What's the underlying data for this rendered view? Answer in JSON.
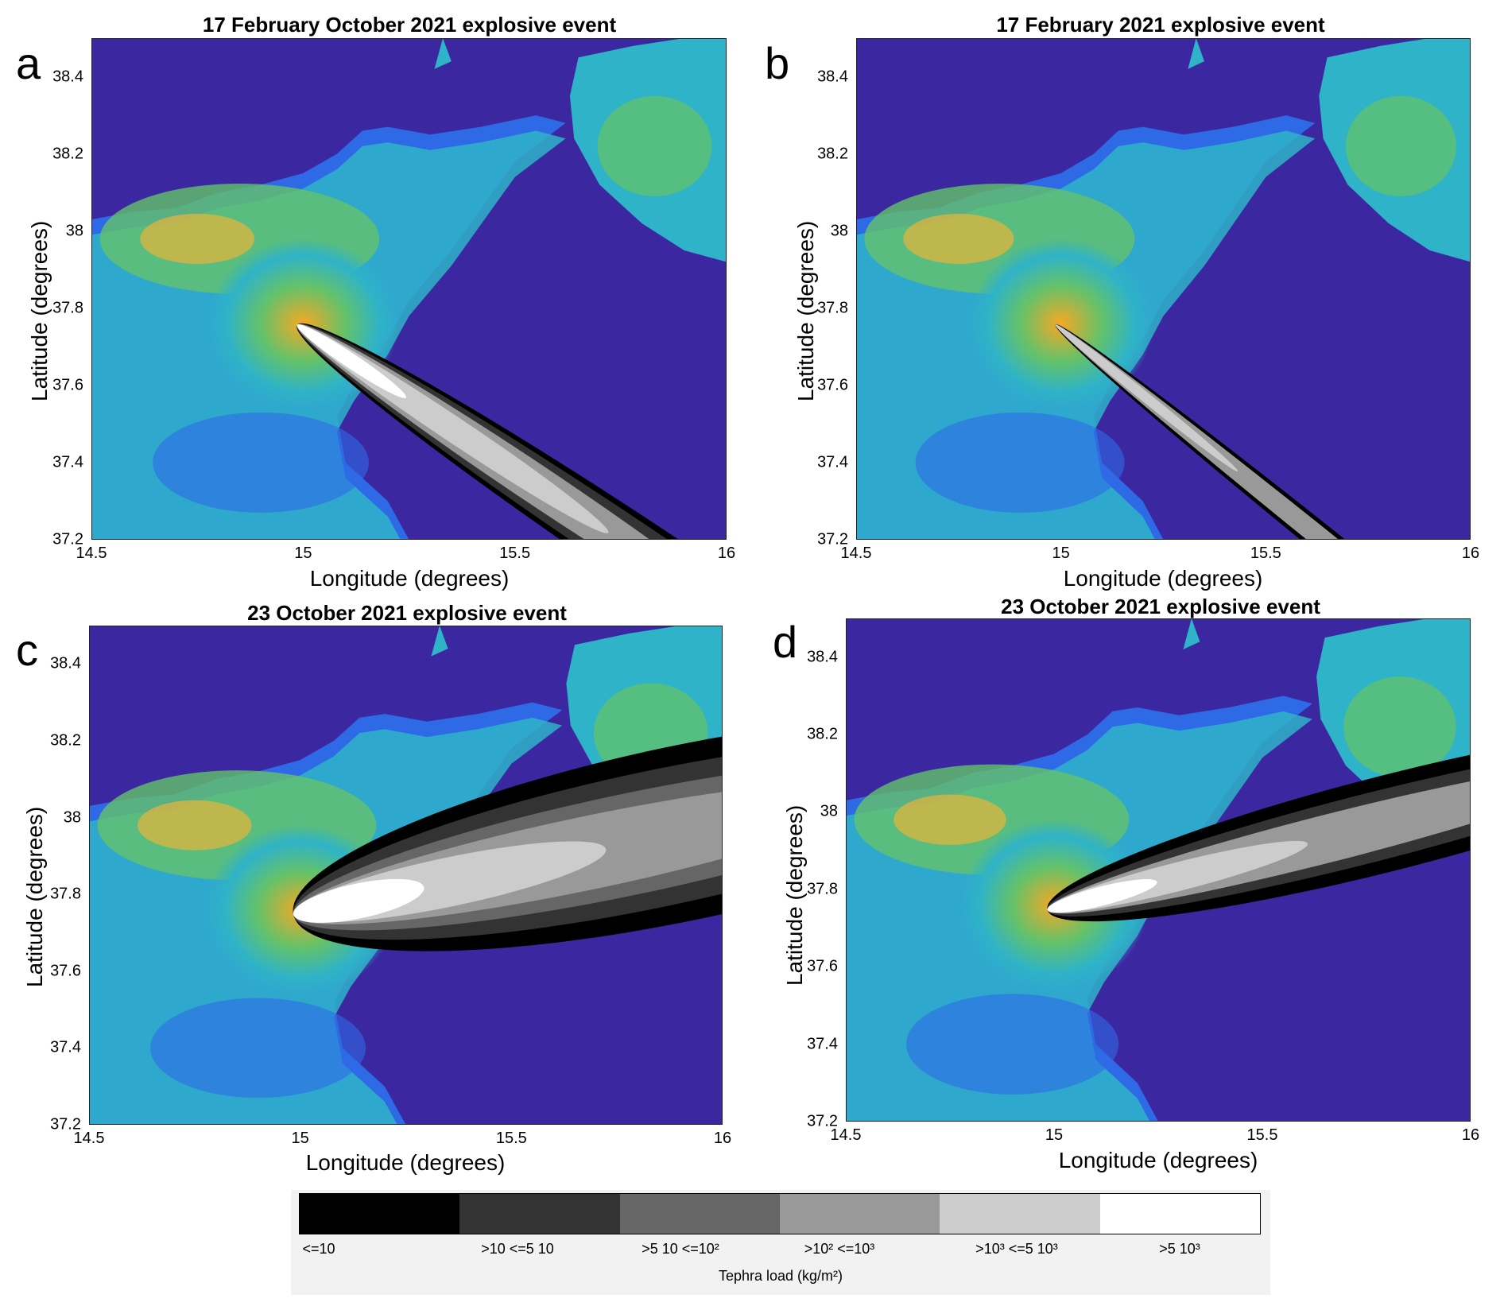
{
  "panels": [
    {
      "letter": "a",
      "title": "17 February October 2021 explosive event",
      "xlabel": "Longitude (degrees)",
      "ylabel": "Latitude (degrees)"
    },
    {
      "letter": "b",
      "title": "17 February 2021 explosive event",
      "xlabel": "Longitude (degrees)",
      "ylabel": "Latitude (degrees)"
    },
    {
      "letter": "c",
      "title": "23 October 2021 explosive event",
      "xlabel": "Longitude (degrees)",
      "ylabel": "Latitude (degrees)"
    },
    {
      "letter": "d",
      "title": "23 October 2021 explosive event",
      "xlabel": "Longitude (degrees)",
      "ylabel": "Latitude (degrees)"
    }
  ],
  "axes": {
    "x_ticks": [
      "14.5",
      "15",
      "15.5",
      "16"
    ],
    "y_ticks": [
      "38.4",
      "38.2",
      "38",
      "37.8",
      "37.6",
      "37.4",
      "37.2"
    ],
    "xlim": [
      14.5,
      16
    ],
    "ylim": [
      37.2,
      38.5
    ]
  },
  "vent": {
    "lon": 14.995,
    "lat": 37.75
  },
  "legend": {
    "title": "Tephra load (kg/m²)",
    "classes": [
      {
        "label": "<=10",
        "color": "#000000"
      },
      {
        "label": ">10 <=5 10",
        "color": "#333333"
      },
      {
        "label": ">5  10  <=10²",
        "color": "#666666"
      },
      {
        "label": ">10² <=10³",
        "color": "#999999"
      },
      {
        "label": ">10³  <=5  10³",
        "color": "#cccccc"
      },
      {
        "label": ">5  10³",
        "color": "#ffffff"
      }
    ]
  },
  "colors": {
    "sea": "#3b28a0",
    "coast_blue": "#2f6ae6",
    "lowland_cyan": "#2fb3c8",
    "hill_green": "#63c26a",
    "ridge_yellow": "#e9b53a",
    "peak_orange": "#f6a823"
  }
}
